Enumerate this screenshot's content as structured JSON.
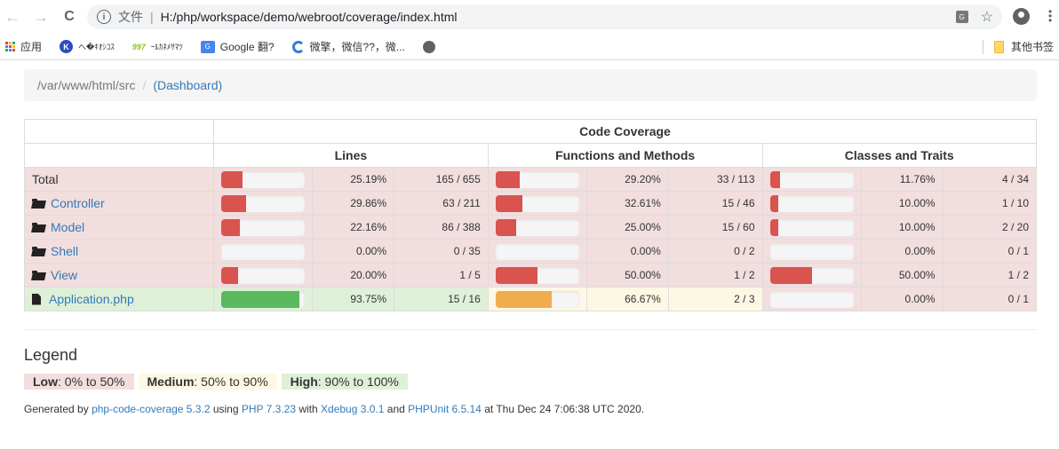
{
  "browser": {
    "back_label": "←",
    "forward_label": "→",
    "reload_label": "C",
    "scheme_label": "文件",
    "url": "H:/php/workspace/demo/webroot/coverage/index.html",
    "bookmarks": [
      {
        "label": "应用"
      },
      {
        "label": "へ�ｷｵｼｺｽ"
      },
      {
        "label": "ｰﾙｶﾈﾒｻﾏﾂ"
      },
      {
        "label": "Google 翻?"
      },
      {
        "label": "微擎，微信??，微..."
      }
    ],
    "other_bookmarks": "其他书签"
  },
  "breadcrumb": {
    "path": "/var/www/html/src",
    "separator": "/",
    "open_paren": "(",
    "dashboard_label": "Dashboard",
    "close_paren": ")"
  },
  "table": {
    "title": "Code Coverage",
    "groups": [
      "Lines",
      "Functions and Methods",
      "Classes and Traits"
    ],
    "rows": [
      {
        "name": "Total",
        "type": "total",
        "class": "danger",
        "lines": {
          "pct": "25.19%",
          "ratio": "165 / 655",
          "width": 25.19,
          "level": "danger",
          "cell": "danger"
        },
        "methods": {
          "pct": "29.20%",
          "ratio": "33 / 113",
          "width": 29.2,
          "level": "danger",
          "cell": "danger"
        },
        "classes": {
          "pct": "11.76%",
          "ratio": "4 / 34",
          "width": 11.76,
          "level": "danger",
          "cell": "danger"
        }
      },
      {
        "name": "Controller",
        "type": "folder",
        "class": "danger",
        "lines": {
          "pct": "29.86%",
          "ratio": "63 / 211",
          "width": 29.86,
          "level": "danger",
          "cell": "danger"
        },
        "methods": {
          "pct": "32.61%",
          "ratio": "15 / 46",
          "width": 32.61,
          "level": "danger",
          "cell": "danger"
        },
        "classes": {
          "pct": "10.00%",
          "ratio": "1 / 10",
          "width": 10,
          "level": "danger",
          "cell": "danger"
        }
      },
      {
        "name": "Model",
        "type": "folder",
        "class": "danger",
        "lines": {
          "pct": "22.16%",
          "ratio": "86 / 388",
          "width": 22.16,
          "level": "danger",
          "cell": "danger"
        },
        "methods": {
          "pct": "25.00%",
          "ratio": "15 / 60",
          "width": 25,
          "level": "danger",
          "cell": "danger"
        },
        "classes": {
          "pct": "10.00%",
          "ratio": "2 / 20",
          "width": 10,
          "level": "danger",
          "cell": "danger"
        }
      },
      {
        "name": "Shell",
        "type": "folder",
        "class": "danger",
        "lines": {
          "pct": "0.00%",
          "ratio": "0 / 35",
          "width": 0,
          "level": "danger",
          "cell": "danger"
        },
        "methods": {
          "pct": "0.00%",
          "ratio": "0 / 2",
          "width": 0,
          "level": "danger",
          "cell": "danger"
        },
        "classes": {
          "pct": "0.00%",
          "ratio": "0 / 1",
          "width": 0,
          "level": "danger",
          "cell": "danger"
        }
      },
      {
        "name": "View",
        "type": "folder",
        "class": "danger",
        "lines": {
          "pct": "20.00%",
          "ratio": "1 / 5",
          "width": 20,
          "level": "danger",
          "cell": "danger"
        },
        "methods": {
          "pct": "50.00%",
          "ratio": "1 / 2",
          "width": 50,
          "level": "danger",
          "cell": "danger"
        },
        "classes": {
          "pct": "50.00%",
          "ratio": "1 / 2",
          "width": 50,
          "level": "danger",
          "cell": "danger"
        }
      },
      {
        "name": "Application.php",
        "type": "file",
        "class": "success",
        "lines": {
          "pct": "93.75%",
          "ratio": "15 / 16",
          "width": 93.75,
          "level": "success",
          "cell": "success"
        },
        "methods": {
          "pct": "66.67%",
          "ratio": "2 / 3",
          "width": 66.67,
          "level": "warning",
          "cell": "warning"
        },
        "classes": {
          "pct": "0.00%",
          "ratio": "0 / 1",
          "width": 0,
          "level": "danger",
          "cell": "danger"
        }
      }
    ]
  },
  "legend": {
    "title": "Legend",
    "items": [
      {
        "label": "Low",
        "range": ": 0% to 50%",
        "color": "#f2dede"
      },
      {
        "label": "Medium",
        "range": ": 50% to 90%",
        "color": "#fcf8e3"
      },
      {
        "label": "High",
        "range": ": 90% to 100%",
        "color": "#dff0d8"
      }
    ]
  },
  "footer": {
    "prefix": "Generated by ",
    "coverage_link": "php-code-coverage 5.3.2",
    "using": " using ",
    "php_link": "PHP 7.3.23",
    "with": " with ",
    "xdebug_link": "Xdebug 3.0.1",
    "and": " and ",
    "phpunit_link": "PHPUnit 6.5.14",
    "suffix": " at Thu Dec 24 7:06:38 UTC 2020."
  },
  "colors": {
    "danger_bar": "#d9534f",
    "warning_bar": "#f0ad4e",
    "success_bar": "#5cb85c",
    "link": "#337ab7"
  }
}
